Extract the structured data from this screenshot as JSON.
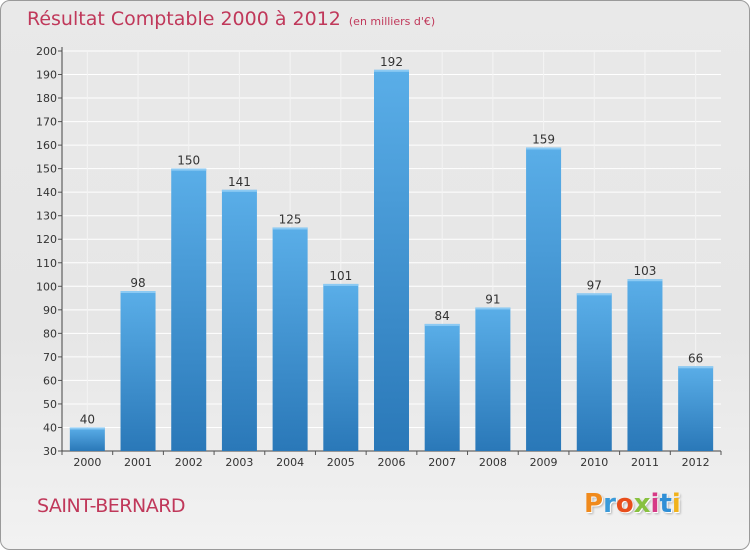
{
  "header": {
    "title": "Résultat Comptable 2000 à 2012",
    "subtitle": "(en milliers d'€)"
  },
  "footer": {
    "city": "SAINT-BERNARD",
    "logo": "Proxiti"
  },
  "colors": {
    "accent": "#c0385a",
    "bar_top": "#5aaee8",
    "bar_bottom": "#2a78b8",
    "logo_letters": [
      "#f08a1c",
      "#3a9ad9",
      "#e84e1b",
      "#88c13f",
      "#d63a86",
      "#2f8fd6",
      "#f0b21c"
    ]
  },
  "chart_data": {
    "type": "bar",
    "title": "Résultat Comptable 2000 à 2012",
    "subtitle": "(en milliers d'€)",
    "xlabel": "",
    "ylabel": "",
    "categories": [
      "2000",
      "2001",
      "2002",
      "2003",
      "2004",
      "2005",
      "2006",
      "2007",
      "2008",
      "2009",
      "2010",
      "2011",
      "2012"
    ],
    "values": [
      40,
      98,
      150,
      141,
      125,
      101,
      192,
      84,
      91,
      159,
      97,
      103,
      66
    ],
    "ylim": [
      30,
      200
    ],
    "yticks": [
      30,
      40,
      50,
      60,
      70,
      80,
      90,
      100,
      110,
      120,
      130,
      140,
      150,
      160,
      170,
      180,
      190,
      200
    ],
    "grid": true
  }
}
